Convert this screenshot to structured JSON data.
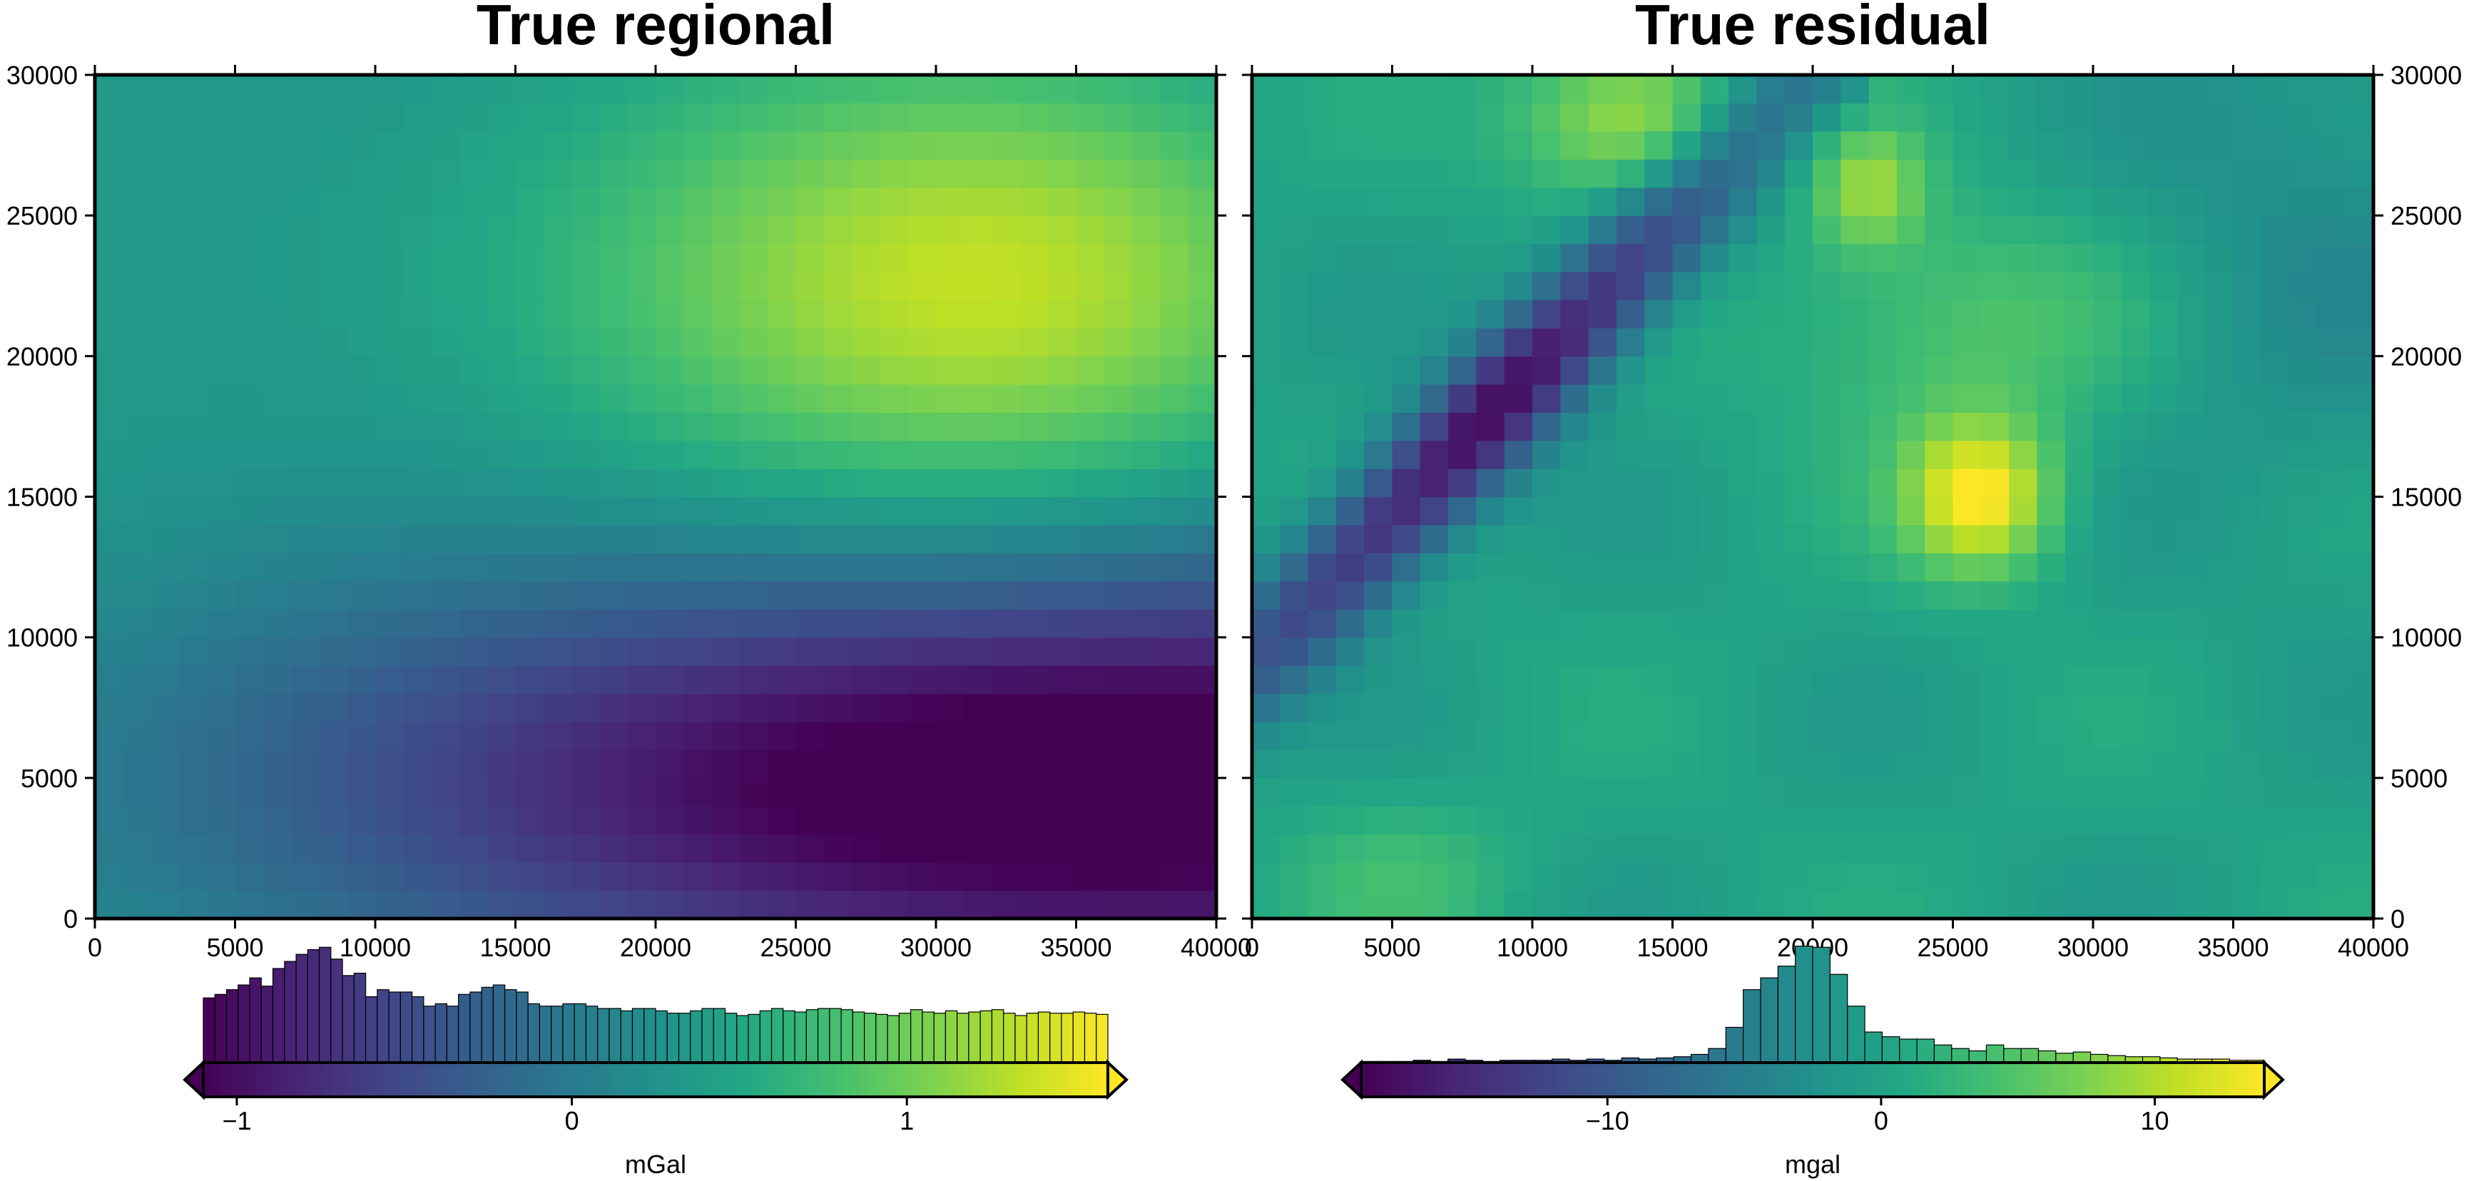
{
  "chart_data": [
    {
      "type": "heatmap",
      "title": "True regional",
      "xlim": [
        0,
        40000
      ],
      "ylim": [
        0,
        30000
      ],
      "x_ticks": [
        0,
        5000,
        10000,
        15000,
        20000,
        25000,
        30000,
        35000,
        40000
      ],
      "x_tick_labels": [
        "0",
        "5000",
        "10000",
        "15000",
        "20000",
        "25000",
        "30000",
        "35000",
        "40000"
      ],
      "y_ticks": [
        0,
        5000,
        10000,
        15000,
        20000,
        25000,
        30000
      ],
      "y_tick_labels": [
        "0",
        "5000",
        "10000",
        "15000",
        "20000",
        "25000",
        "30000"
      ],
      "y_axis_side": "left",
      "grid": false,
      "colormap": "viridis",
      "colorbar": {
        "label": "mGal",
        "range": [
          -1.1,
          1.6
        ],
        "ticks": [
          -1,
          0,
          1
        ],
        "tick_labels": [
          "−1",
          "0",
          "1"
        ],
        "extend": "both",
        "histogram": [
          0.55,
          0.58,
          0.62,
          0.66,
          0.72,
          0.65,
          0.8,
          0.86,
          0.92,
          0.96,
          0.98,
          0.88,
          0.74,
          0.76,
          0.56,
          0.62,
          0.6,
          0.6,
          0.56,
          0.48,
          0.5,
          0.48,
          0.58,
          0.6,
          0.64,
          0.66,
          0.62,
          0.6,
          0.5,
          0.48,
          0.48,
          0.5,
          0.5,
          0.48,
          0.46,
          0.46,
          0.44,
          0.46,
          0.46,
          0.44,
          0.42,
          0.42,
          0.44,
          0.46,
          0.46,
          0.42,
          0.4,
          0.41,
          0.44,
          0.46,
          0.44,
          0.43,
          0.45,
          0.46,
          0.46,
          0.45,
          0.43,
          0.42,
          0.41,
          0.4,
          0.42,
          0.45,
          0.43,
          0.42,
          0.44,
          0.42,
          0.43,
          0.44,
          0.45,
          0.42,
          0.4,
          0.42,
          0.43,
          0.42,
          0.42,
          0.43,
          0.42,
          0.41
        ]
      },
      "field": {
        "description": "smooth regional field: maximum near (32000, 22500), minimum near (34000, 5000)",
        "max": {
          "x": 32000,
          "y": 22500,
          "value": 1.6
        },
        "min": {
          "x": 34000,
          "y": 5000,
          "value": -1.1
        }
      }
    },
    {
      "type": "heatmap",
      "title": "True residual",
      "xlim": [
        0,
        40000
      ],
      "ylim": [
        0,
        30000
      ],
      "x_ticks": [
        0,
        5000,
        10000,
        15000,
        20000,
        25000,
        30000,
        35000,
        40000
      ],
      "x_tick_labels": [
        "0",
        "5000",
        "10000",
        "15000",
        "20000",
        "25000",
        "30000",
        "35000",
        "40000"
      ],
      "y_ticks": [
        0,
        5000,
        10000,
        15000,
        20000,
        25000,
        30000
      ],
      "y_tick_labels": [
        "0",
        "5000",
        "10000",
        "15000",
        "20000",
        "25000",
        "30000"
      ],
      "y_axis_side": "right",
      "grid": false,
      "colormap": "viridis",
      "colorbar": {
        "label": "mgal",
        "range": [
          -19,
          14
        ],
        "ticks": [
          -10,
          0,
          10
        ],
        "tick_labels": [
          "−10",
          "0",
          "10"
        ],
        "extend": "both",
        "histogram": [
          0.01,
          0.01,
          0.01,
          0.02,
          0.01,
          0.03,
          0.02,
          0.01,
          0.02,
          0.02,
          0.02,
          0.03,
          0.02,
          0.03,
          0.02,
          0.04,
          0.03,
          0.04,
          0.05,
          0.07,
          0.12,
          0.3,
          0.62,
          0.72,
          0.82,
          0.99,
          0.98,
          0.75,
          0.48,
          0.26,
          0.22,
          0.2,
          0.2,
          0.15,
          0.12,
          0.1,
          0.15,
          0.12,
          0.12,
          0.1,
          0.08,
          0.09,
          0.07,
          0.06,
          0.05,
          0.05,
          0.04,
          0.03,
          0.03,
          0.03,
          0.02,
          0.02
        ]
      },
      "features": [
        {
          "kind": "linear-low",
          "from": {
            "x": 0,
            "y": 9000
          },
          "to": {
            "x": 19000,
            "y": 29000
          },
          "min_value": -18
        },
        {
          "kind": "high",
          "x": 26000,
          "y": 15000,
          "value": 14
        },
        {
          "kind": "high",
          "x": 13500,
          "y": 28500,
          "value": 10
        },
        {
          "kind": "high",
          "x": 22000,
          "y": 26000,
          "value": 8
        }
      ]
    }
  ]
}
